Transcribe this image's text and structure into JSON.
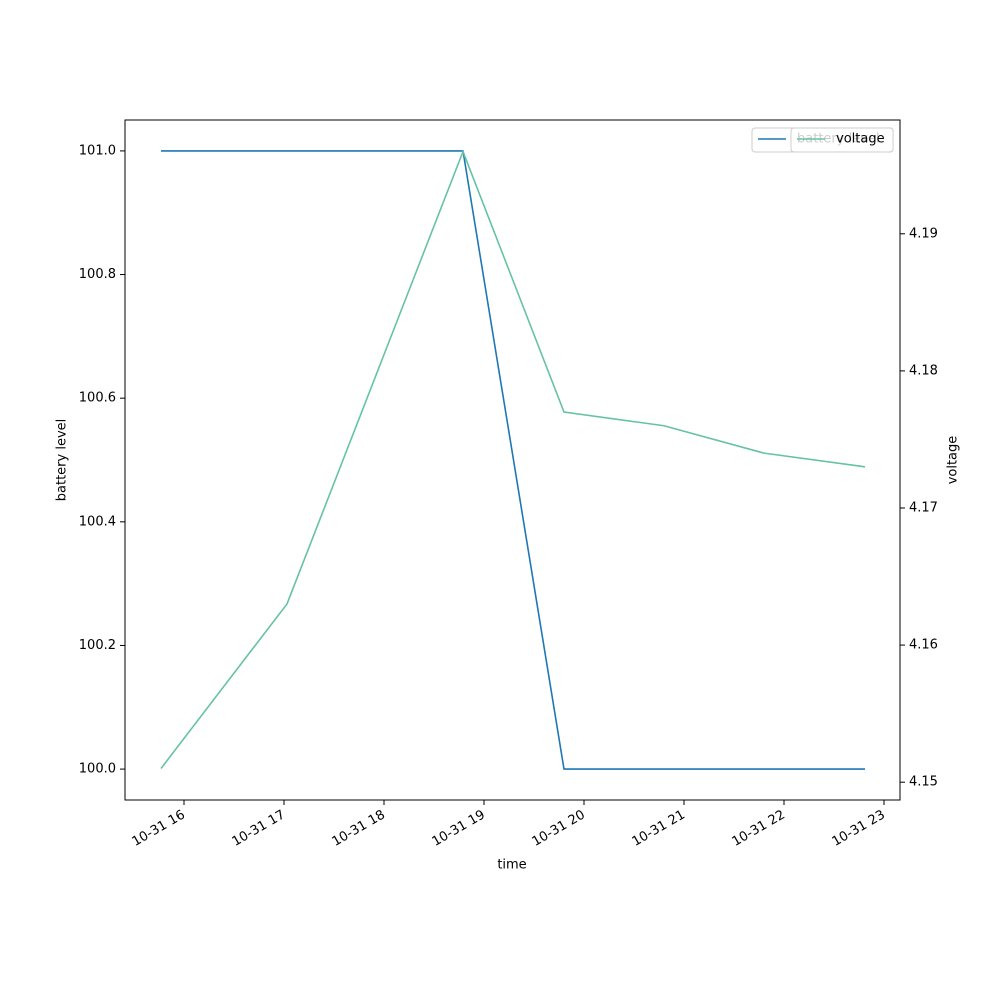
{
  "chart_data": {
    "type": "line",
    "x": [
      15.77,
      17.03,
      18.79,
      19.8,
      20.8,
      21.8,
      22.81
    ],
    "xlim": [
      15.41,
      23.16
    ],
    "xticks": [
      {
        "value": 16,
        "label": "10-31 16"
      },
      {
        "value": 17,
        "label": "10-31 17"
      },
      {
        "value": 18,
        "label": "10-31 18"
      },
      {
        "value": 19,
        "label": "10-31 19"
      },
      {
        "value": 20,
        "label": "10-31 20"
      },
      {
        "value": 21,
        "label": "10-31 21"
      },
      {
        "value": 22,
        "label": "10-31 22"
      },
      {
        "value": 23,
        "label": "10-31 23"
      }
    ],
    "xlabel": "time",
    "ylabel": "battery level",
    "y2label": "voltage",
    "ylim": [
      99.95,
      101.05
    ],
    "yticks": [
      {
        "value": 100,
        "label": "100.0"
      },
      100.2,
      100.4,
      100.6,
      100.8,
      {
        "value": 101,
        "label": "101.0"
      }
    ],
    "y2lim": [
      4.1487,
      4.1983
    ],
    "y2ticks": [
      4.15,
      4.16,
      4.17,
      4.18,
      4.19
    ],
    "legend": "upper right",
    "series": [
      {
        "name": "battery level",
        "color": "#1f77b4",
        "values": [
          101,
          101,
          101,
          100,
          100,
          100,
          100
        ]
      },
      {
        "name": "voltage",
        "color": "#66c2a5",
        "axis": "y2",
        "values": [
          4.151,
          4.163,
          4.196,
          4.177,
          4.176,
          4.174,
          4.173
        ]
      }
    ]
  }
}
